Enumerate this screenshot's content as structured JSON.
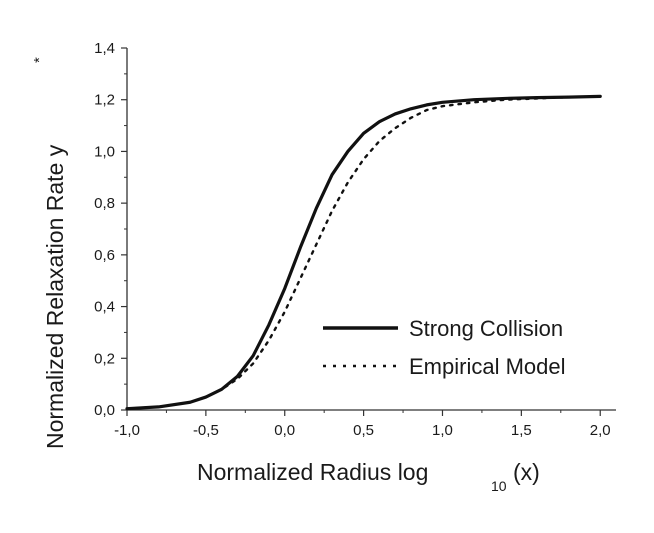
{
  "chart_data": {
    "type": "line",
    "xlabel": {
      "main": "Normalized Radius log",
      "sub": "10",
      "tail": "(x)"
    },
    "ylabel": {
      "main": "Normalized Relaxation Rate y",
      "sup": "*"
    },
    "xlim": [
      -1.0,
      2.1
    ],
    "ylim": [
      0.0,
      1.4
    ],
    "xticks": [
      -1.0,
      -0.5,
      0.0,
      0.5,
      1.0,
      1.5,
      2.0
    ],
    "xtick_labels": [
      "-1,0",
      "-0,5",
      "0,0",
      "0,5",
      "1,0",
      "1,5",
      "2,0"
    ],
    "yticks": [
      0.0,
      0.2,
      0.4,
      0.6,
      0.8,
      1.0,
      1.2,
      1.4
    ],
    "ytick_labels": [
      "0,0",
      "0,2",
      "0,4",
      "0,6",
      "0,8",
      "1,0",
      "1,2",
      "1,4"
    ],
    "grid": false,
    "legend_position": "lower-right",
    "series": [
      {
        "name": "Strong Collision",
        "style": "solid",
        "color": "#111111",
        "x": [
          -1.0,
          -0.8,
          -0.6,
          -0.5,
          -0.4,
          -0.3,
          -0.2,
          -0.1,
          0.0,
          0.1,
          0.2,
          0.3,
          0.4,
          0.5,
          0.6,
          0.7,
          0.8,
          0.9,
          1.0,
          1.2,
          1.4,
          1.6,
          1.8,
          2.0
        ],
        "y": [
          0.005,
          0.012,
          0.03,
          0.05,
          0.08,
          0.13,
          0.21,
          0.33,
          0.47,
          0.63,
          0.78,
          0.91,
          1.0,
          1.07,
          1.115,
          1.145,
          1.165,
          1.18,
          1.19,
          1.2,
          1.205,
          1.208,
          1.21,
          1.213
        ]
      },
      {
        "name": "Empirical Model",
        "style": "dotted",
        "color": "#111111",
        "x": [
          -1.0,
          -0.8,
          -0.6,
          -0.5,
          -0.4,
          -0.3,
          -0.2,
          -0.1,
          0.0,
          0.1,
          0.2,
          0.3,
          0.4,
          0.5,
          0.6,
          0.7,
          0.8,
          0.9,
          1.0,
          1.2,
          1.4,
          1.6,
          1.8,
          2.0
        ],
        "y": [
          0.005,
          0.012,
          0.03,
          0.05,
          0.08,
          0.12,
          0.18,
          0.27,
          0.38,
          0.51,
          0.64,
          0.77,
          0.88,
          0.97,
          1.04,
          1.09,
          1.13,
          1.16,
          1.175,
          1.19,
          1.2,
          1.205,
          1.21,
          1.212
        ]
      }
    ]
  }
}
